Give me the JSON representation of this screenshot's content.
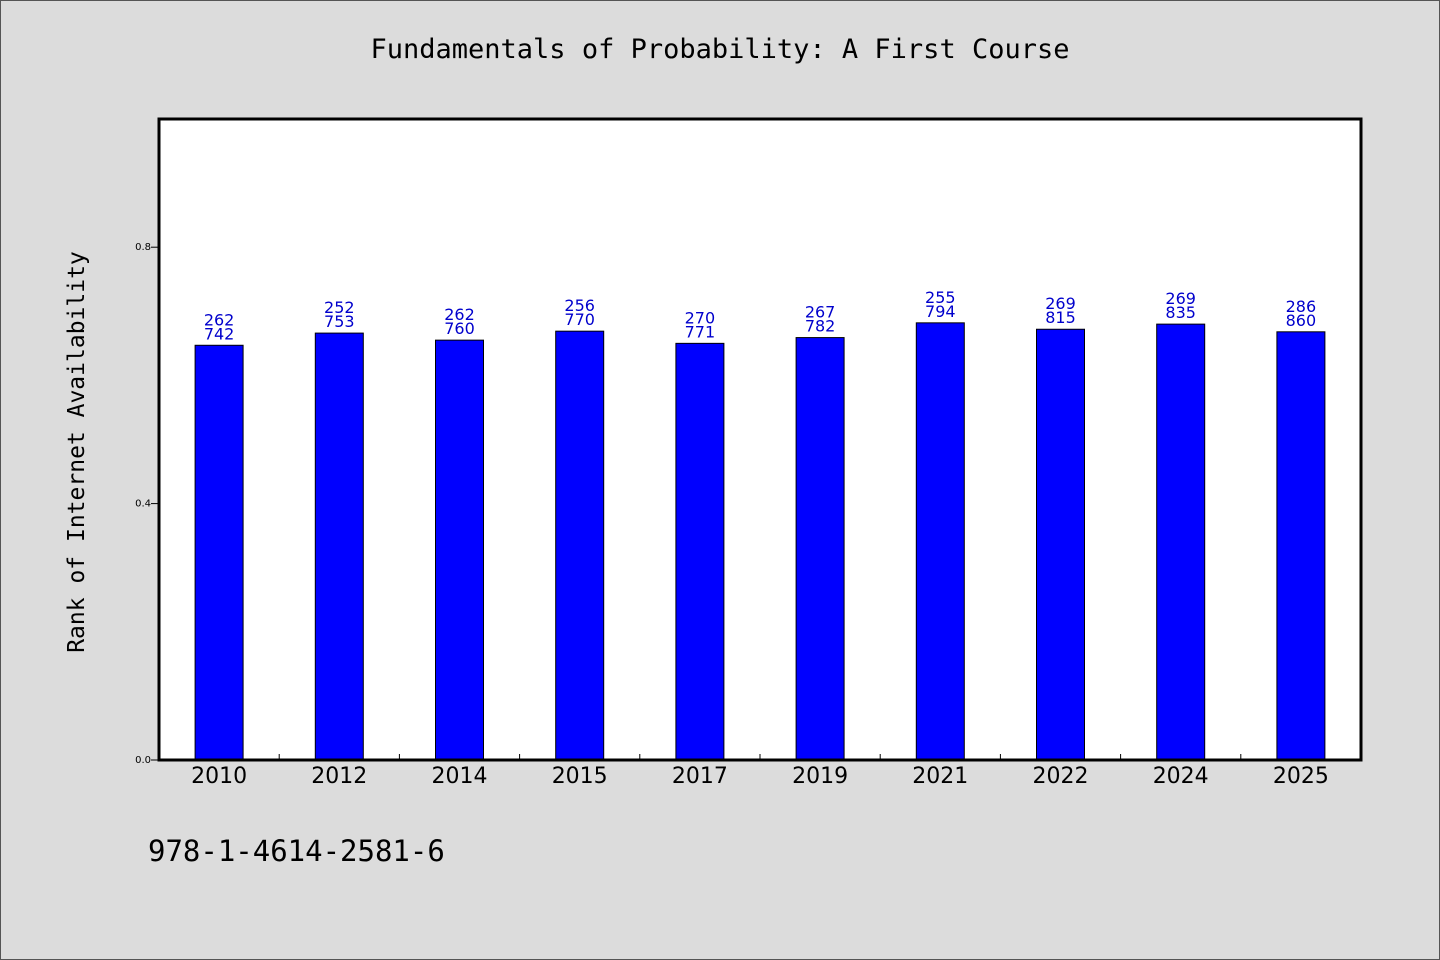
{
  "chart_data": {
    "type": "bar",
    "title": "Fundamentals of Probability: A First Course",
    "xlabel": "",
    "ylabel": "Rank of Internet Availability",
    "categories": [
      "2010",
      "2012",
      "2014",
      "2015",
      "2017",
      "2019",
      "2021",
      "2022",
      "2024",
      "2025"
    ],
    "values": [
      0.647,
      0.666,
      0.655,
      0.669,
      0.65,
      0.659,
      0.682,
      0.672,
      0.68,
      0.668
    ],
    "data_labels": [
      [
        "262",
        "742"
      ],
      [
        "252",
        "753"
      ],
      [
        "262",
        "760"
      ],
      [
        "256",
        "770"
      ],
      [
        "270",
        "771"
      ],
      [
        "267",
        "782"
      ],
      [
        "255",
        "794"
      ],
      [
        "269",
        "815"
      ],
      [
        "269",
        "835"
      ],
      [
        "286",
        "860"
      ]
    ],
    "ylim": [
      0,
      1.0
    ],
    "yticks": [
      "0.0",
      "0.4",
      "0.8"
    ],
    "grid": false,
    "legend": "none",
    "colors": {
      "bar": "#0000ff",
      "data_label": "#0000cc",
      "background": "#dcdcdc",
      "plot_bg": "#ffffff"
    }
  },
  "footer": {
    "isbn": "978-1-4614-2581-6"
  }
}
